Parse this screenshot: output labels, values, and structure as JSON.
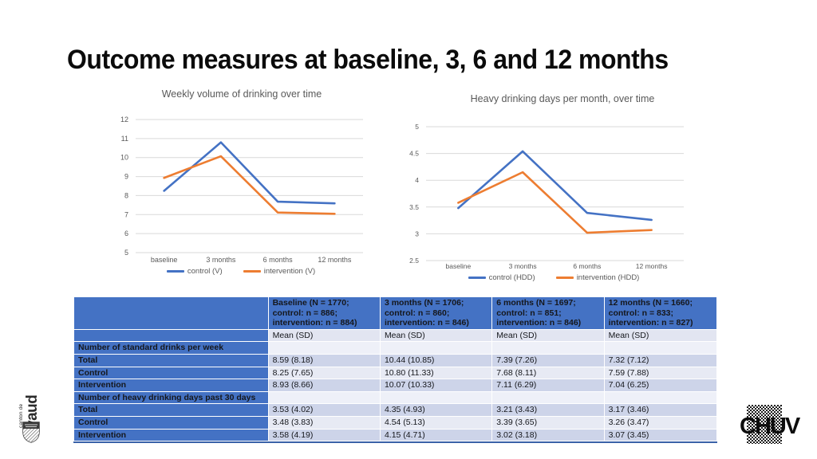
{
  "slide": {
    "title": "Outcome measures at baseline, 3, 6 and 12 months"
  },
  "colors": {
    "accent_blue": "#4472C4",
    "accent_orange": "#ED7D31",
    "table_header_blue": "#4472C4",
    "table_border_blue": "#3A62A8",
    "band_dark": "#CDD4E9",
    "band_light": "#E7EAF4",
    "mean_row": "#E2E5F1",
    "section_row": "#EEF0F8",
    "gridline": "#D9D9D9",
    "chart_text": "#595959"
  },
  "chart_data": [
    {
      "type": "line",
      "title": "Weekly volume of drinking over time",
      "x": [
        "baseline",
        "3 months",
        "6 months",
        "12 months"
      ],
      "series": [
        {
          "name": "control (V)",
          "color": "#4472C4",
          "values": [
            8.25,
            10.8,
            7.68,
            7.59
          ]
        },
        {
          "name": "intervention (V)",
          "color": "#ED7D31",
          "values": [
            8.93,
            10.07,
            7.11,
            7.04
          ]
        }
      ],
      "xlabel": "",
      "ylabel": "",
      "ylim": [
        5,
        12
      ],
      "ytick_step": 1,
      "grid": true,
      "legend_position": "bottom"
    },
    {
      "type": "line",
      "title": "Heavy drinking days per month, over time",
      "x": [
        "baseline",
        "3 months",
        "6 months",
        "12 months"
      ],
      "series": [
        {
          "name": "control (HDD)",
          "color": "#4472C4",
          "values": [
            3.48,
            4.54,
            3.39,
            3.26
          ]
        },
        {
          "name": "intervention (HDD)",
          "color": "#ED7D31",
          "values": [
            3.58,
            4.15,
            3.02,
            3.07
          ]
        }
      ],
      "xlabel": "",
      "ylabel": "",
      "ylim": [
        2.5,
        5
      ],
      "ytick_step": 0.5,
      "grid": true,
      "legend_position": "bottom"
    }
  ],
  "table": {
    "headers": [
      [
        "Baseline (N = 1770;",
        "control: n = 886;",
        "intervention: n = 884)"
      ],
      [
        "3 months (N = 1706;",
        "control: n = 860;",
        "intervention: n = 846)"
      ],
      [
        "6 months (N = 1697;",
        "control: n = 851;",
        "intervention: n = 846)"
      ],
      [
        "12 months (N = 1660;",
        "control: n = 833;",
        "intervention: n = 827)"
      ]
    ],
    "mean_sd_label": "Mean (SD)",
    "sections": [
      {
        "label": "Number of standard drinks per week",
        "rows": [
          {
            "label": "Total",
            "values": [
              "8.59 (8.18)",
              "10.44 (10.85)",
              "7.39 (7.26)",
              "7.32 (7.12)"
            ]
          },
          {
            "label": "Control",
            "values": [
              "8.25 (7.65)",
              "10.80 (11.33)",
              "7.68 (8.11)",
              "7.59 (7.88)"
            ]
          },
          {
            "label": "Intervention",
            "values": [
              "8.93 (8.66)",
              "10.07 (10.33)",
              "7.11 (6.29)",
              "7.04 (6.25)"
            ]
          }
        ]
      },
      {
        "label": "Number of heavy drinking days past 30 days",
        "rows": [
          {
            "label": "Total",
            "values": [
              "3.53 (4.02)",
              "4.35 (4.93)",
              "3.21 (3.43)",
              "3.17 (3.46)"
            ]
          },
          {
            "label": "Control",
            "values": [
              "3.48 (3.83)",
              "4.54 (5.13)",
              "3.39 (3.65)",
              "3.26 (3.47)"
            ]
          },
          {
            "label": "Intervention",
            "values": [
              "3.58 (4.19)",
              "4.15 (4.71)",
              "3.02 (3.18)",
              "3.07 (3.45)"
            ]
          }
        ]
      }
    ]
  },
  "logos": {
    "vaud_small": "canton de",
    "vaud_big": "vaud",
    "chuv": "CHUV"
  }
}
